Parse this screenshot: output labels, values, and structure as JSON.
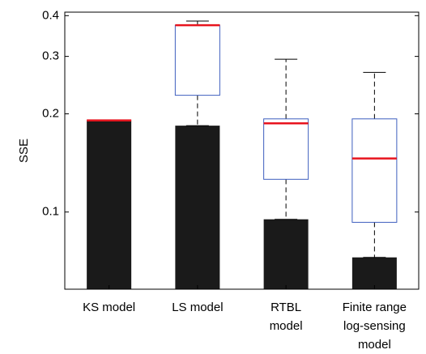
{
  "chart_data": {
    "type": "box",
    "y_label": "SSE",
    "y_scale": "log",
    "ylim": [
      0.058,
      0.41
    ],
    "yticks": [
      0.1,
      0.2,
      0.3,
      0.4
    ],
    "grid": false,
    "categories": [
      [
        "KS model"
      ],
      [
        "LS model"
      ],
      [
        "RTBL",
        "model"
      ],
      [
        "Finite range",
        "log-sensing",
        "model"
      ]
    ],
    "bars": {
      "color": "#1a1a1a",
      "values": [
        0.191,
        0.184,
        0.095,
        0.0726
      ]
    },
    "boxes": {
      "box_color": "#3f5fbf",
      "median_color": "#e8141e",
      "whisker_color": "#000000",
      "whisker_low": [
        0.191,
        0.184,
        0.095,
        0.0726
      ],
      "q1": [
        0.191,
        0.228,
        0.126,
        0.093
      ],
      "median": [
        0.191,
        0.374,
        0.187,
        0.146
      ],
      "q3": [
        0.191,
        0.374,
        0.193,
        0.193
      ],
      "whisker_high": [
        0.191,
        0.385,
        0.294,
        0.268
      ]
    }
  }
}
